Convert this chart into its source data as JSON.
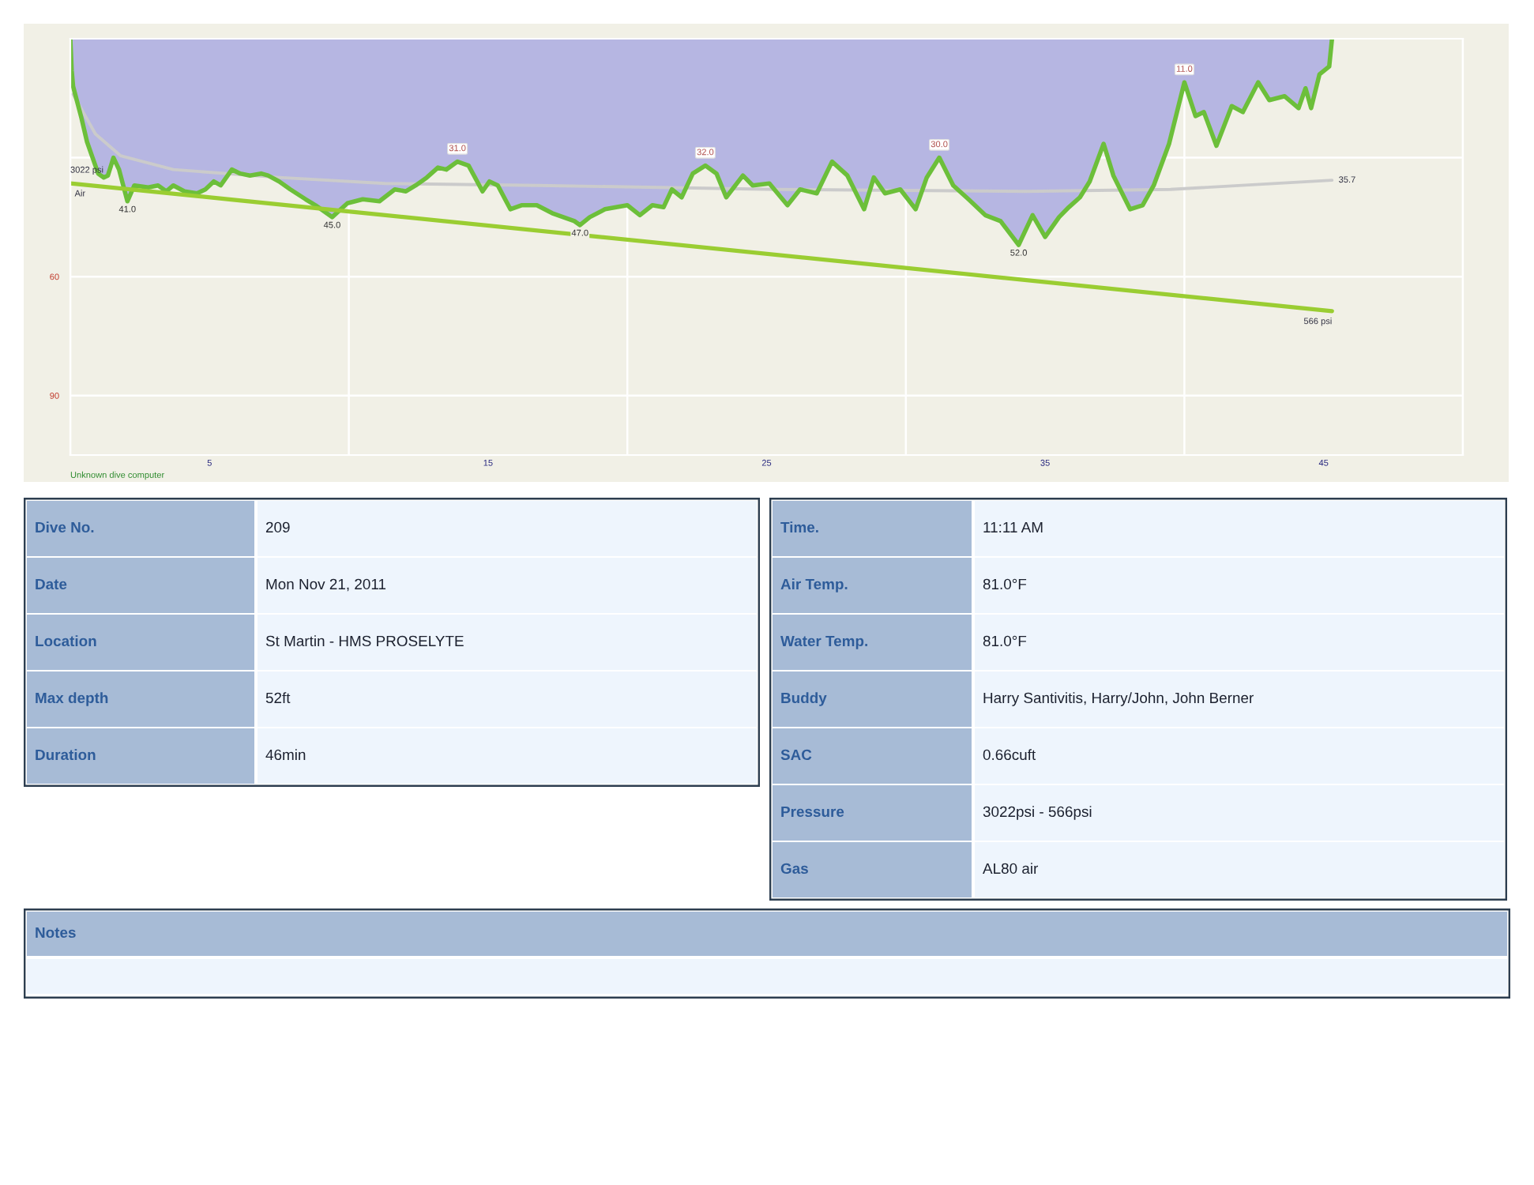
{
  "chart_data": [
    {
      "type": "line",
      "x": [
        0,
        0.05,
        0.1,
        0.4,
        0.6,
        0.8,
        1.0,
        1.2,
        1.35,
        1.55,
        1.75,
        2.05,
        2.3,
        2.8,
        3.15,
        3.45,
        3.7,
        4.1,
        4.55,
        4.85,
        5.15,
        5.4,
        5.8,
        6.1,
        6.45,
        6.85,
        7.1,
        7.5,
        7.9,
        8.45,
        8.8,
        9.4,
        9.95,
        10.5,
        11.1,
        11.65,
        12.05,
        12.4,
        12.8,
        13.2,
        13.5,
        13.9,
        14.3,
        14.8,
        15.05,
        15.35,
        15.8,
        16.2,
        16.75,
        17.3,
        18.1,
        18.3,
        18.65,
        19.2,
        20,
        20.45,
        20.9,
        21.3,
        21.6,
        21.95,
        22.35,
        22.8,
        23.2,
        23.55,
        24.15,
        24.5,
        25.1,
        25.75,
        26.2,
        26.8,
        27.35,
        27.9,
        28.5,
        28.85,
        29.25,
        29.8,
        30.35,
        30.75,
        31.2,
        31.7,
        32.25,
        32.85,
        33.4,
        34.05,
        34.55,
        35,
        35.5,
        35.85,
        36.25,
        36.6,
        37.1,
        37.45,
        38.05,
        38.5,
        38.9,
        39.45,
        40,
        40.4,
        40.7,
        41.15,
        41.7,
        42.1,
        42.65,
        43.05,
        43.6,
        44.1,
        44.35,
        44.55,
        44.85,
        45.2,
        45.3
      ],
      "xlim": [
        0,
        50
      ],
      "xticks": [
        {
          "value": 0,
          "label": null
        },
        5,
        {
          "value": 10,
          "label": null
        },
        15,
        {
          "value": 20,
          "label": null
        },
        25,
        {
          "value": 30,
          "label": null
        },
        35,
        {
          "value": 40,
          "label": null
        },
        45,
        {
          "value": 50,
          "label": null
        }
      ],
      "ylim": [
        105,
        0
      ],
      "yticks": [
        {
          "value": 30,
          "label": null
        },
        60,
        90
      ],
      "y2lim": [
        -2200,
        5800
      ],
      "grid": true,
      "annotations": [
        "Unknown dive computer"
      ],
      "series": [
        {
          "type": "line",
          "color": "#6cbf3a",
          "values": [
            0,
            8,
            12,
            20,
            26,
            30,
            34,
            35,
            34.5,
            30,
            33,
            41,
            37,
            37.5,
            37,
            38.5,
            37,
            38.5,
            39,
            38,
            36,
            37,
            33,
            34,
            34.5,
            34,
            34.5,
            36,
            38,
            40.5,
            42,
            45,
            41.5,
            40.5,
            41,
            38,
            38.5,
            37,
            35,
            32.5,
            33,
            31,
            32,
            38.5,
            36,
            37,
            43,
            42,
            42,
            44,
            46,
            47,
            45,
            43,
            42,
            44.5,
            42,
            42.5,
            38,
            40,
            34,
            32,
            34,
            40,
            34.5,
            37,
            36.5,
            42,
            38,
            39,
            31,
            34.5,
            43,
            35,
            39,
            38,
            43,
            35,
            30,
            37,
            40.5,
            44.5,
            46,
            52,
            44.5,
            50,
            45,
            42.5,
            40,
            36,
            26.5,
            34.5,
            43,
            42,
            37,
            26.5,
            11,
            19.5,
            18.5,
            27,
            17,
            18.5,
            11,
            15.5,
            14.5,
            17.5,
            12.5,
            17.5,
            9,
            7,
            0
          ],
          "value_labels": [
            null,
            null,
            null,
            null,
            null,
            null,
            null,
            null,
            null,
            null,
            null,
            "41.0",
            null,
            null,
            null,
            null,
            null,
            null,
            null,
            null,
            null,
            null,
            null,
            null,
            null,
            null,
            null,
            null,
            null,
            null,
            null,
            "45.0",
            null,
            null,
            null,
            null,
            null,
            null,
            null,
            null,
            null,
            "31.0",
            null,
            null,
            null,
            null,
            null,
            null,
            null,
            null,
            null,
            "47.0",
            null,
            null,
            null,
            null,
            null,
            null,
            null,
            null,
            null,
            "32.0",
            null,
            null,
            null,
            null,
            null,
            null,
            null,
            null,
            null,
            null,
            null,
            null,
            null,
            null,
            null,
            null,
            "30.0",
            null,
            null,
            null,
            null,
            "52.0",
            null,
            null,
            null,
            null,
            null,
            null,
            null,
            null,
            null,
            null,
            null,
            null,
            "11.0",
            null,
            null,
            null,
            null,
            null,
            null,
            null,
            null,
            null,
            null,
            null,
            null,
            null,
            null
          ]
        },
        {
          "type": "line",
          "color": "#cbcbcb",
          "x": [
            0.1,
            0.9,
            1.8,
            3.7,
            7.5,
            11.3,
            16.8,
            25.3,
            34.3,
            39.5,
            45.3
          ],
          "values": [
            14,
            24,
            29.5,
            33,
            35,
            36.5,
            37,
            38,
            38.5,
            38,
            35.7
          ],
          "value_labels": [
            null,
            null,
            null,
            null,
            null,
            null,
            null,
            null,
            null,
            null,
            "35.7"
          ]
        },
        {
          "type": "line",
          "name": "Air",
          "axis": "y2",
          "color": "#9acd32",
          "x": [
            0,
            45.3
          ],
          "values": [
            3022,
            566
          ],
          "value_labels": [
            "3022 psi",
            "566 psi"
          ]
        }
      ]
    },
    {
      "type": "other",
      "y_categories": [
        "Dive No.",
        "Date",
        "Location",
        "Max depth",
        "Duration"
      ],
      "cell_labels": [
        [
          "209"
        ],
        [
          "Mon Nov 21, 2011"
        ],
        [
          "St Martin - HMS PROSELYTE"
        ],
        [
          "52ft"
        ],
        [
          "46min"
        ]
      ]
    },
    {
      "type": "other",
      "y_categories": [
        "Time.",
        "Air Temp.",
        "Water Temp.",
        "Buddy",
        "SAC",
        "Pressure",
        "Gas"
      ],
      "cell_labels": [
        [
          "11:11 AM"
        ],
        [
          "81.0°F"
        ],
        [
          "81.0°F"
        ],
        [
          "Harry Santivitis, Harry/John, John Berner"
        ],
        [
          "0.66cuft"
        ],
        [
          "3022psi - 566psi"
        ],
        [
          "AL80 air"
        ]
      ]
    },
    {
      "type": "other",
      "title": "Notes"
    }
  ]
}
